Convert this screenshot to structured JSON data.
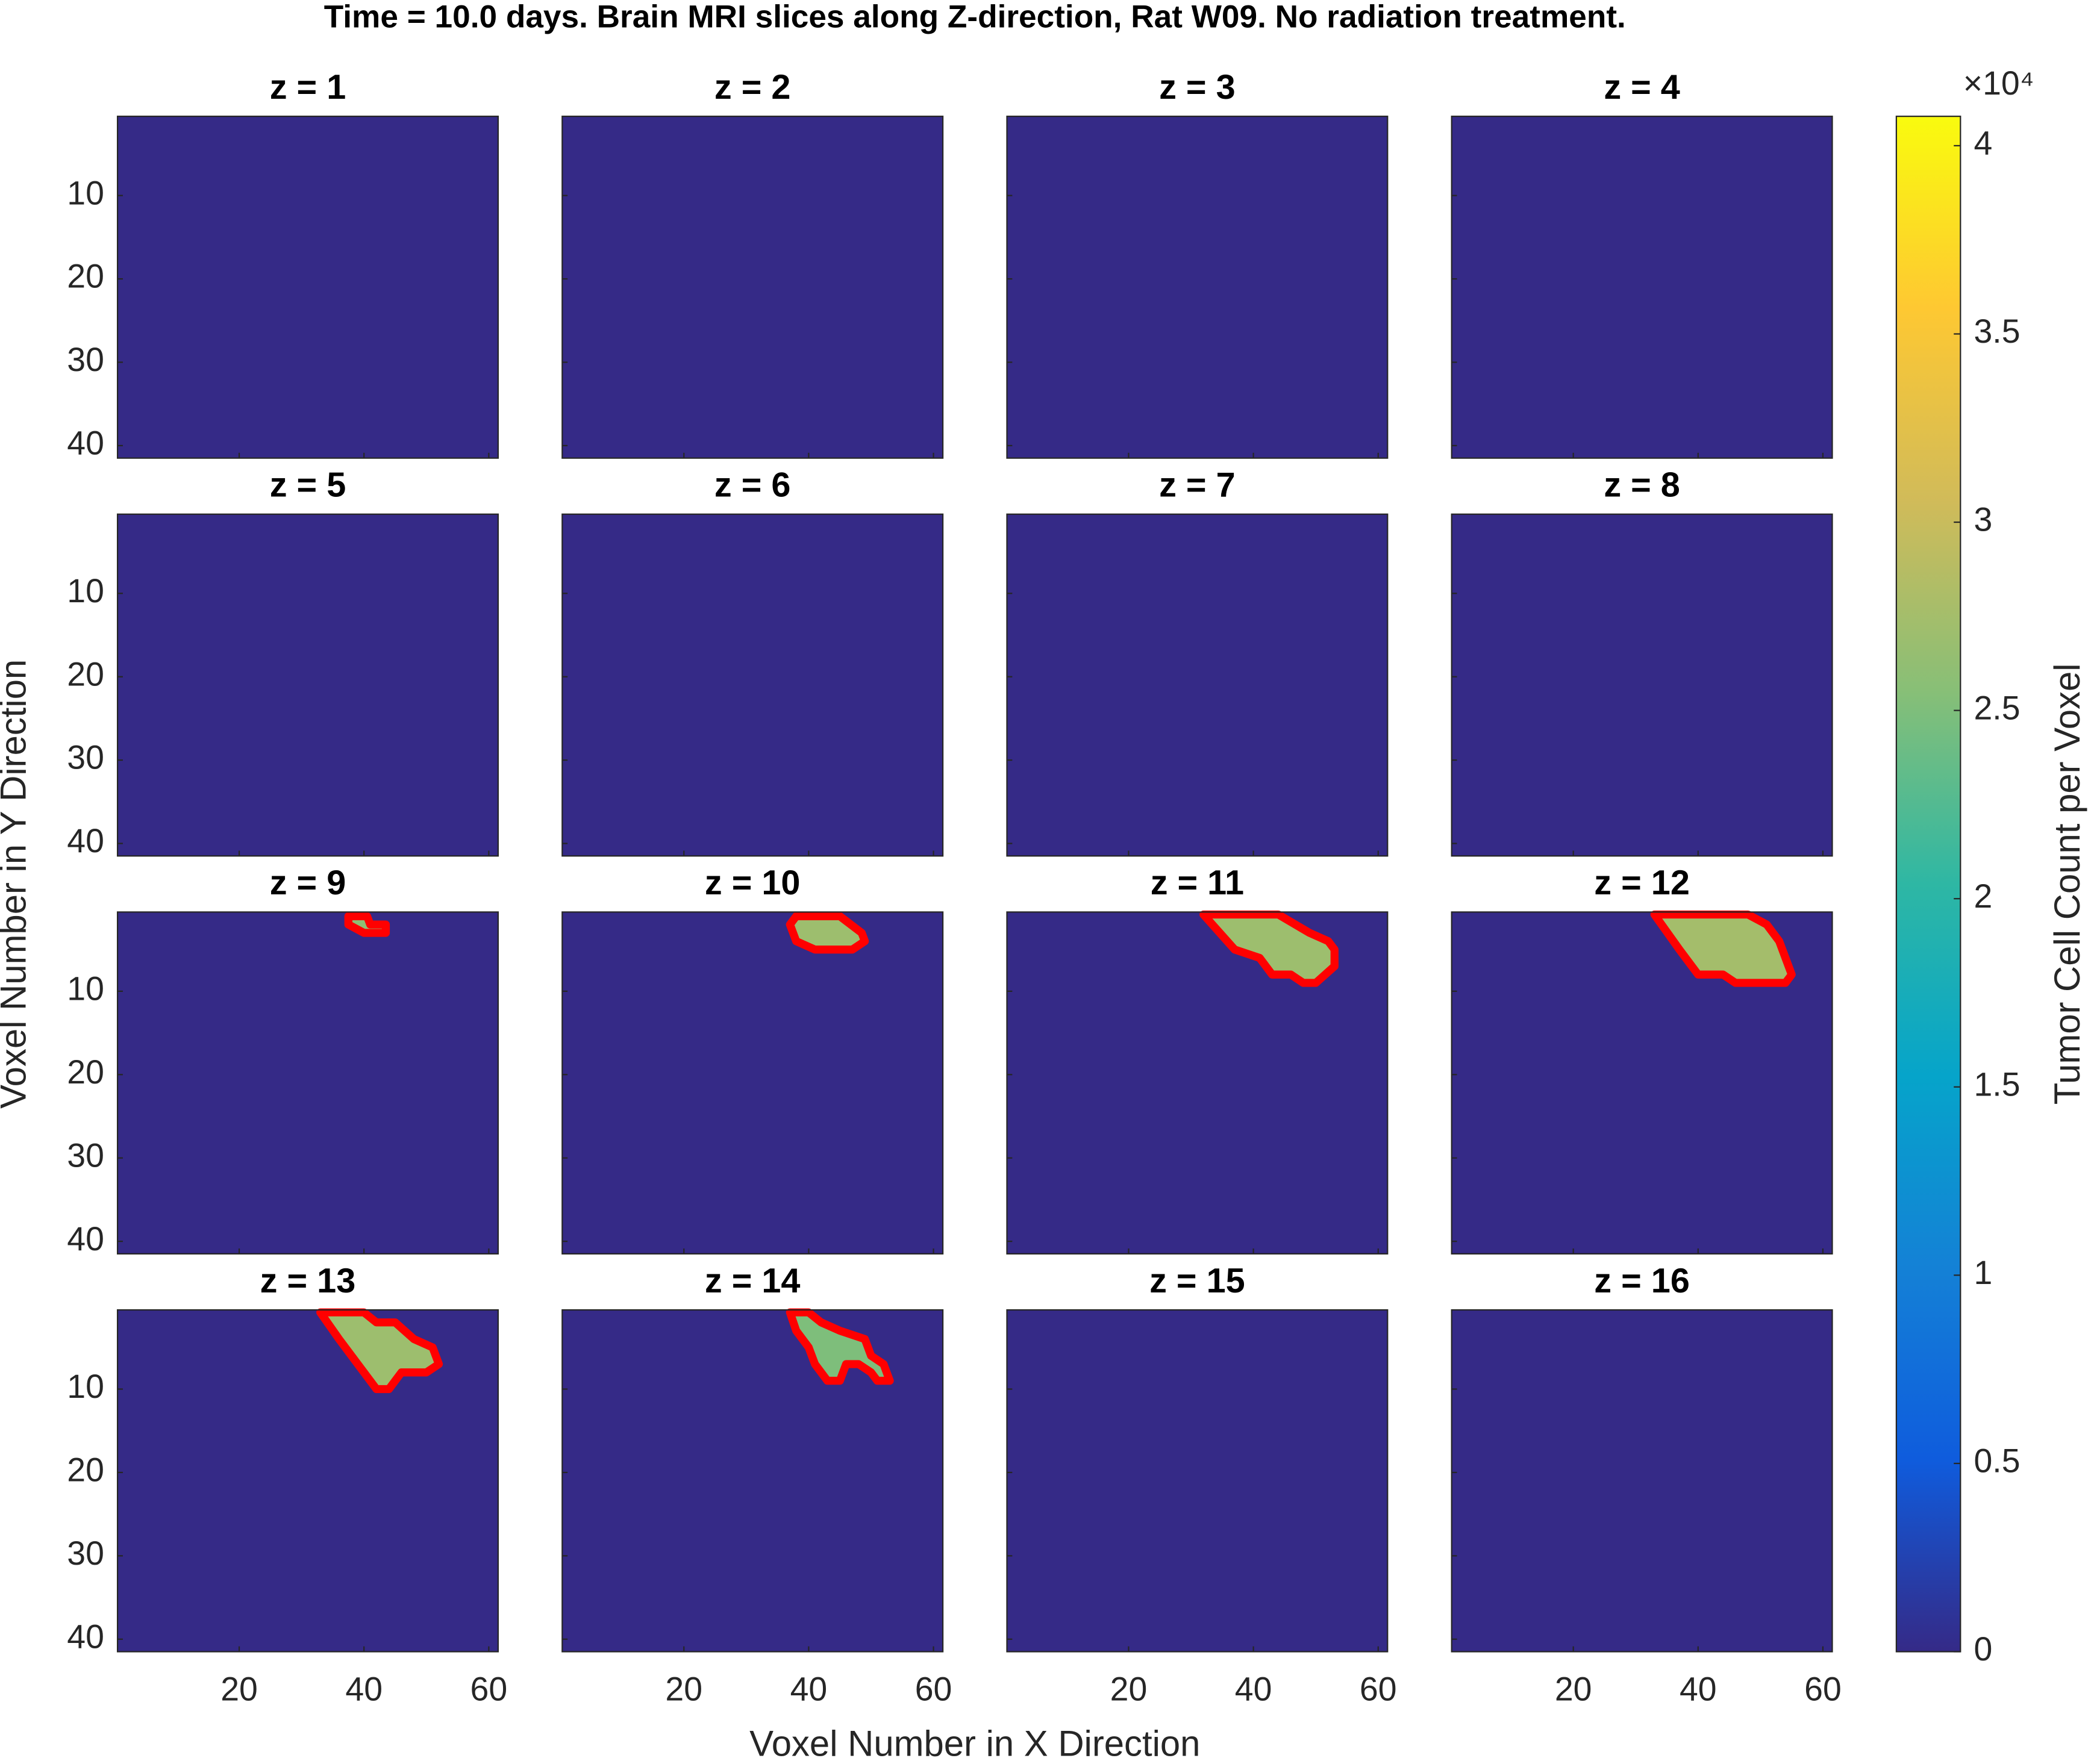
{
  "chart_data": {
    "type": "heatmap",
    "title": "Time = 10.0 days. Brain MRI slices along Z-direction, Rat W09. No radiation treatment.",
    "xlabel": "Voxel Number in X Direction",
    "ylabel": "Voxel Number in Y Direction",
    "xlim": [
      0.5,
      61.5
    ],
    "ylim": [
      0.5,
      41.5
    ],
    "xticks": [
      20,
      40,
      60
    ],
    "yticks": [
      10,
      20,
      30,
      40
    ],
    "background_value": 0,
    "outline_color": "#ff0000",
    "panels": [
      {
        "title": "z = 1",
        "regions": []
      },
      {
        "title": "z = 2",
        "regions": []
      },
      {
        "title": "z = 3",
        "regions": []
      },
      {
        "title": "z = 4",
        "regions": []
      },
      {
        "title": "z = 5",
        "regions": []
      },
      {
        "title": "z = 6",
        "regions": []
      },
      {
        "title": "z = 7",
        "regions": []
      },
      {
        "title": "z = 8",
        "regions": []
      },
      {
        "title": "z = 9",
        "regions": [
          {
            "value": 26000,
            "outline": [
              [
                37.5,
                1
              ],
              [
                40.5,
                1
              ],
              [
                41,
                2
              ],
              [
                43.5,
                2
              ],
              [
                43.5,
                3
              ],
              [
                40,
                3
              ],
              [
                37.5,
                2
              ]
            ]
          }
        ]
      },
      {
        "title": "z = 10",
        "regions": [
          {
            "value": 27000,
            "outline": [
              [
                37,
                2
              ],
              [
                38,
                1
              ],
              [
                45,
                1
              ],
              [
                48.5,
                3
              ],
              [
                49,
                4
              ],
              [
                47,
                5
              ],
              [
                41,
                5
              ],
              [
                38,
                4
              ]
            ]
          }
        ]
      },
      {
        "title": "z = 11",
        "regions": [
          {
            "value": 27000,
            "outline": [
              [
                32,
                0.8
              ],
              [
                44,
                0.8
              ],
              [
                49,
                3
              ],
              [
                52,
                4
              ],
              [
                53,
                5
              ],
              [
                53,
                7
              ],
              [
                50,
                9
              ],
              [
                48,
                9
              ],
              [
                46,
                8
              ],
              [
                43,
                8
              ],
              [
                41,
                6
              ],
              [
                37,
                5
              ]
            ]
          }
        ]
      },
      {
        "title": "z = 12",
        "regions": [
          {
            "value": 27500,
            "outline": [
              [
                33,
                0.8
              ],
              [
                48,
                0.8
              ],
              [
                51,
                2
              ],
              [
                53,
                4
              ],
              [
                54,
                6
              ],
              [
                55,
                8
              ],
              [
                54,
                9
              ],
              [
                46,
                9
              ],
              [
                44,
                8
              ],
              [
                40,
                8
              ],
              [
                37,
                5
              ]
            ]
          }
        ]
      },
      {
        "title": "z = 13",
        "regions": [
          {
            "value": 27000,
            "outline": [
              [
                33,
                0.8
              ],
              [
                40,
                0.8
              ],
              [
                42,
                2
              ],
              [
                45,
                2
              ],
              [
                48,
                4
              ],
              [
                51,
                5
              ],
              [
                52,
                7
              ],
              [
                50,
                8
              ],
              [
                46,
                8
              ],
              [
                44,
                10
              ],
              [
                42,
                10
              ],
              [
                39,
                7
              ],
              [
                36,
                4
              ]
            ]
          }
        ]
      },
      {
        "title": "z = 14",
        "regions": [
          {
            "value": 25000,
            "outline": [
              [
                37,
                0.8
              ],
              [
                40,
                0.8
              ],
              [
                42,
                2
              ],
              [
                45,
                3
              ],
              [
                49,
                4
              ],
              [
                50,
                6
              ],
              [
                52,
                7
              ],
              [
                53,
                9
              ],
              [
                51,
                9
              ],
              [
                50,
                8
              ],
              [
                48,
                7
              ],
              [
                46,
                7
              ],
              [
                45,
                9
              ],
              [
                43,
                9
              ],
              [
                41,
                7
              ],
              [
                40,
                5
              ],
              [
                38,
                3
              ]
            ]
          }
        ]
      },
      {
        "title": "z = 15",
        "regions": []
      },
      {
        "title": "z = 16",
        "regions": []
      }
    ],
    "colorbar": {
      "label": "Tumor Cell Count per Voxel",
      "exponent": "×10⁴",
      "clim": [
        0,
        40780
      ],
      "ticks": [
        0,
        {
          "value": 5000,
          "label": "0.5"
        },
        {
          "value": 10000,
          "label": "1"
        },
        {
          "value": 15000,
          "label": "1.5"
        },
        {
          "value": 20000,
          "label": "2"
        },
        {
          "value": 25000,
          "label": "2.5"
        },
        {
          "value": 30000,
          "label": "3"
        },
        {
          "value": 35000,
          "label": "3.5"
        },
        {
          "value": 40000,
          "label": "4"
        }
      ],
      "colormap": [
        "#352a87",
        "#0f5cdd",
        "#1481d6",
        "#06a4ca",
        "#2eb7a4",
        "#87bf77",
        "#d1bb59",
        "#fec832",
        "#f9fb0e"
      ]
    }
  }
}
